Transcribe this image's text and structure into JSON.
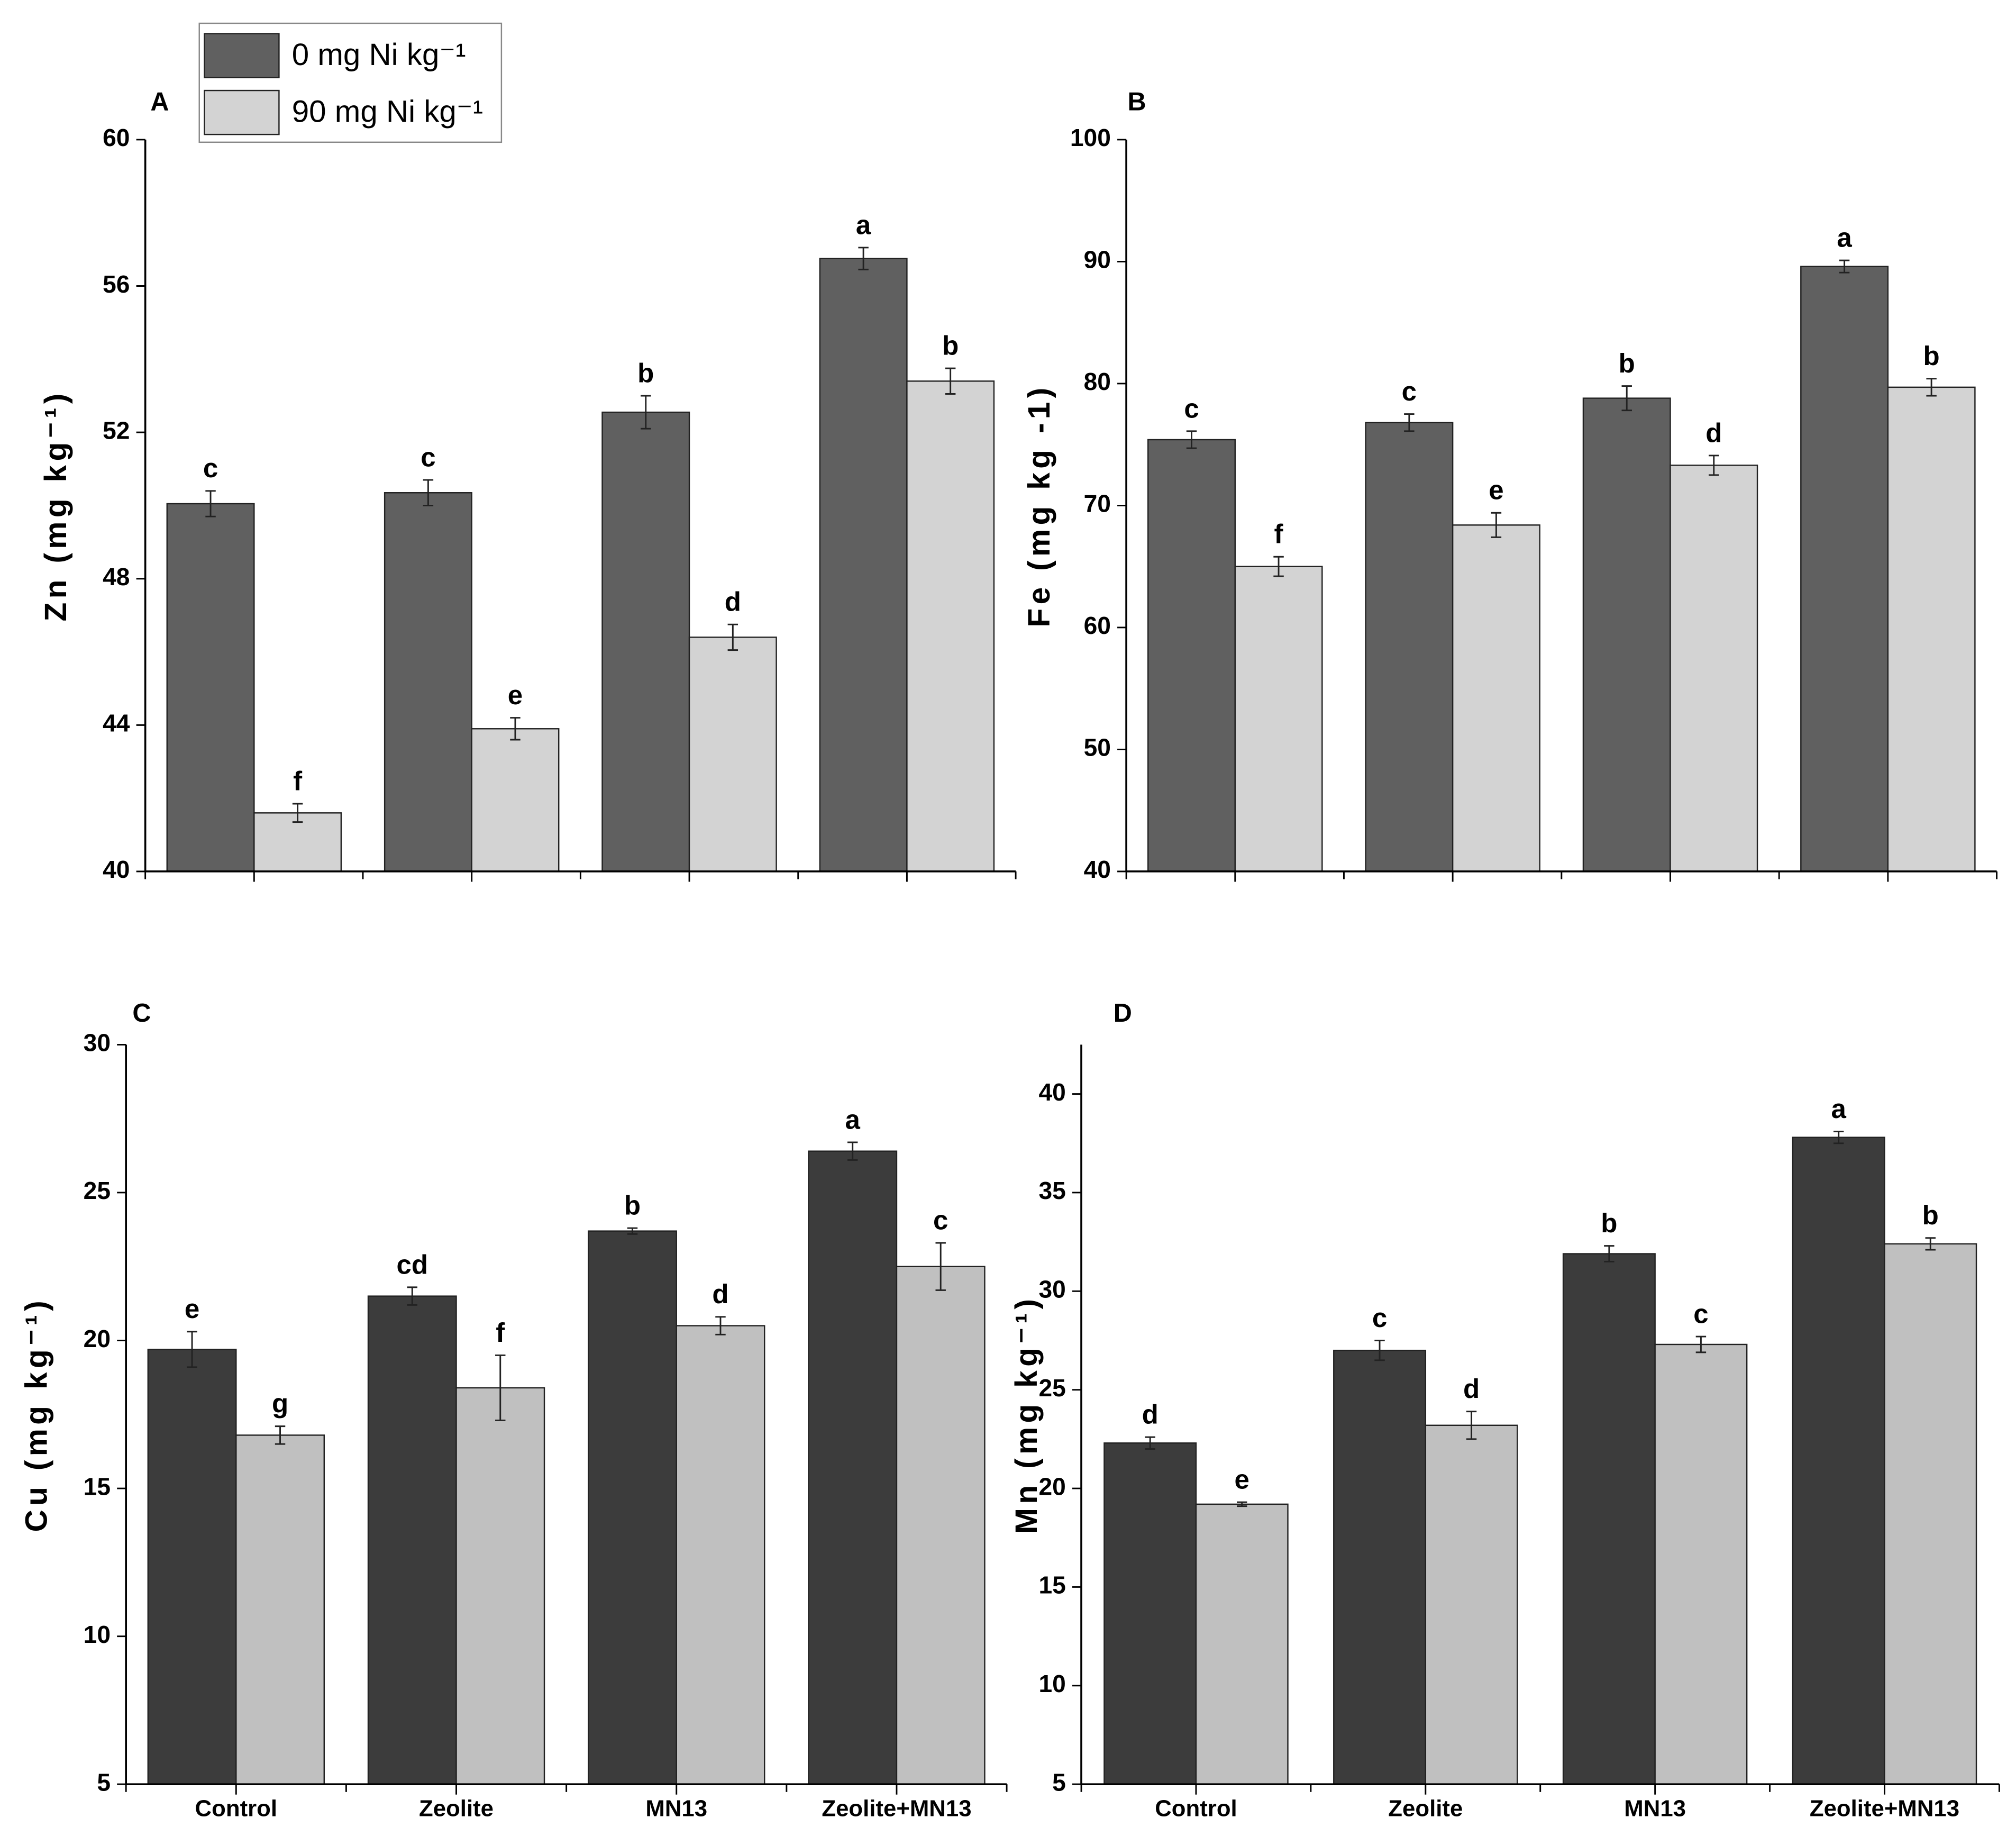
{
  "chart_data": [
    {
      "type": "bar",
      "panel_label": "A",
      "y_label": "Zn (mg kg⁻¹)",
      "categories": [
        null,
        null,
        null,
        null
      ],
      "series": [
        {
          "name": "0 mg Ni kg⁻¹",
          "color": "#606060",
          "values": [
            50.05,
            50.35,
            52.55,
            56.75
          ],
          "errors": [
            0.35,
            0.35,
            0.45,
            0.3
          ],
          "letters": [
            "c",
            "c",
            "b",
            "a"
          ]
        },
        {
          "name": "90 mg Ni kg⁻¹",
          "color": "#d3d3d3",
          "values": [
            41.6,
            43.9,
            46.4,
            53.4
          ],
          "errors": [
            0.25,
            0.3,
            0.35,
            0.35
          ],
          "letters": [
            "f",
            "e",
            "d",
            "b"
          ]
        }
      ],
      "ylim": [
        40,
        60
      ],
      "yticks": [
        40,
        44,
        48,
        52,
        56,
        60
      ],
      "legend": "top"
    },
    {
      "type": "bar",
      "panel_label": "B",
      "y_label": "Fe (mg kg -1)",
      "categories": [
        null,
        null,
        null,
        null
      ],
      "series": [
        {
          "name": "0 mg Ni kg⁻¹",
          "color": "#606060",
          "values": [
            75.4,
            76.8,
            78.8,
            89.6
          ],
          "errors": [
            0.7,
            0.7,
            1.0,
            0.5
          ],
          "letters": [
            "c",
            "c",
            "b",
            "a"
          ]
        },
        {
          "name": "90 mg Ni kg⁻¹",
          "color": "#d3d3d3",
          "values": [
            65.0,
            68.4,
            73.3,
            79.7
          ],
          "errors": [
            0.8,
            1.0,
            0.8,
            0.7
          ],
          "letters": [
            "f",
            "e",
            "d",
            "b"
          ]
        }
      ],
      "ylim": [
        40,
        100
      ],
      "yticks": [
        40,
        50,
        60,
        70,
        80,
        90,
        100
      ]
    },
    {
      "type": "bar",
      "panel_label": "C",
      "y_label": "Cu (mg kg⁻¹)",
      "categories": [
        "Control",
        "Zeolite",
        "MN13",
        "Zeolite+MN13"
      ],
      "series": [
        {
          "name": "0 mg Ni kg⁻¹",
          "color": "#3c3c3c",
          "values": [
            19.7,
            21.5,
            23.7,
            26.4
          ],
          "errors": [
            0.6,
            0.3,
            0.1,
            0.3
          ],
          "letters": [
            "e",
            "cd",
            "b",
            "a"
          ]
        },
        {
          "name": "90 mg Ni kg⁻¹",
          "color": "#c0c0c0",
          "values": [
            16.8,
            18.4,
            20.5,
            22.5
          ],
          "errors": [
            0.3,
            1.1,
            0.3,
            0.8
          ],
          "letters": [
            "g",
            "f",
            "d",
            "c"
          ]
        }
      ],
      "ylim": [
        5,
        30
      ],
      "yticks": [
        5,
        10,
        15,
        20,
        25,
        30
      ]
    },
    {
      "type": "bar",
      "panel_label": "D",
      "y_label": "Mn (mg kg⁻¹)",
      "categories": [
        "Control",
        "Zeolite",
        "MN13",
        "Zeolite+MN13"
      ],
      "series": [
        {
          "name": "0 mg Ni kg⁻¹",
          "color": "#3c3c3c",
          "values": [
            22.3,
            27.0,
            31.9,
            37.8
          ],
          "errors": [
            0.3,
            0.5,
            0.4,
            0.3
          ],
          "letters": [
            "d",
            "c",
            "b",
            "a"
          ]
        },
        {
          "name": "90 mg Ni kg⁻¹",
          "color": "#c0c0c0",
          "values": [
            19.2,
            23.2,
            27.3,
            32.4
          ],
          "errors": [
            0.1,
            0.7,
            0.4,
            0.3
          ],
          "letters": [
            "e",
            "d",
            "c",
            "b"
          ]
        }
      ],
      "ylim": [
        5,
        42.5
      ],
      "yticks": [
        5,
        10,
        15,
        20,
        25,
        30,
        35,
        40
      ]
    }
  ]
}
